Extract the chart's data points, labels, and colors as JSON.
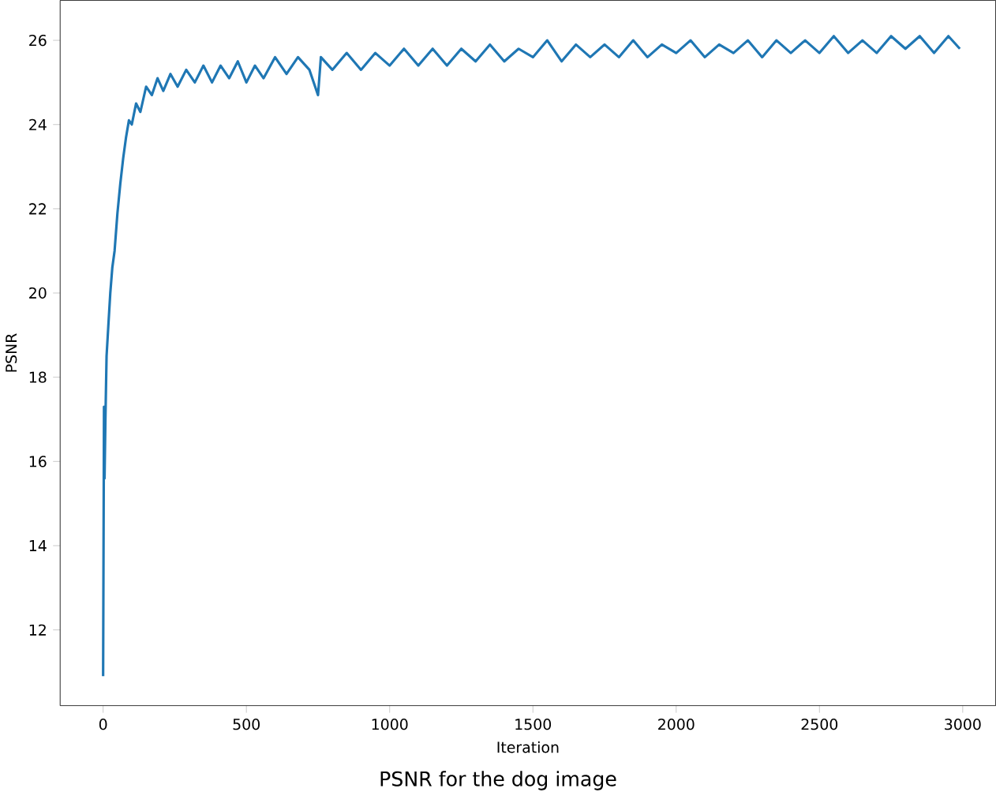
{
  "chart_data": {
    "type": "line",
    "xlabel": "Iteration",
    "ylabel": "PSNR",
    "annotations": [
      "PSNR for the dog image"
    ],
    "xlim": [
      -150,
      3115
    ],
    "ylim": [
      10.2,
      26.95
    ],
    "xticks": [
      0,
      500,
      1000,
      1500,
      2000,
      2500,
      3000
    ],
    "yticks": [
      12,
      14,
      16,
      18,
      20,
      22,
      24,
      26
    ],
    "series": [
      {
        "color": "#1f77b4",
        "x": [
          0,
          3,
          5,
          8,
          12,
          18,
          25,
          32,
          40,
          50,
          60,
          70,
          80,
          90,
          100,
          115,
          130,
          150,
          170,
          190,
          210,
          235,
          260,
          290,
          320,
          350,
          380,
          410,
          440,
          470,
          500,
          530,
          560,
          600,
          640,
          680,
          720,
          750,
          760,
          800,
          850,
          900,
          950,
          1000,
          1050,
          1100,
          1150,
          1200,
          1250,
          1300,
          1350,
          1400,
          1450,
          1500,
          1550,
          1600,
          1650,
          1700,
          1750,
          1800,
          1850,
          1900,
          1950,
          2000,
          2050,
          2100,
          2150,
          2200,
          2250,
          2300,
          2350,
          2400,
          2450,
          2500,
          2550,
          2600,
          2650,
          2700,
          2750,
          2800,
          2850,
          2900,
          2950,
          2990
        ],
        "values": [
          10.9,
          17.3,
          15.6,
          17.0,
          18.5,
          19.2,
          20.0,
          20.6,
          21.0,
          21.9,
          22.6,
          23.2,
          23.7,
          24.1,
          24.0,
          24.5,
          24.3,
          24.9,
          24.7,
          25.1,
          24.8,
          25.2,
          24.9,
          25.3,
          25.0,
          25.4,
          25.0,
          25.4,
          25.1,
          25.5,
          25.0,
          25.4,
          25.1,
          25.6,
          25.2,
          25.6,
          25.3,
          24.7,
          25.6,
          25.3,
          25.7,
          25.3,
          25.7,
          25.4,
          25.8,
          25.4,
          25.8,
          25.4,
          25.8,
          25.5,
          25.9,
          25.5,
          25.8,
          25.6,
          26.0,
          25.5,
          25.9,
          25.6,
          25.9,
          25.6,
          26.0,
          25.6,
          25.9,
          25.7,
          26.0,
          25.6,
          25.9,
          25.7,
          26.0,
          25.6,
          26.0,
          25.7,
          26.0,
          25.7,
          26.1,
          25.7,
          26.0,
          25.7,
          26.1,
          25.8,
          26.1,
          25.7,
          26.1,
          25.8
        ]
      }
    ]
  }
}
